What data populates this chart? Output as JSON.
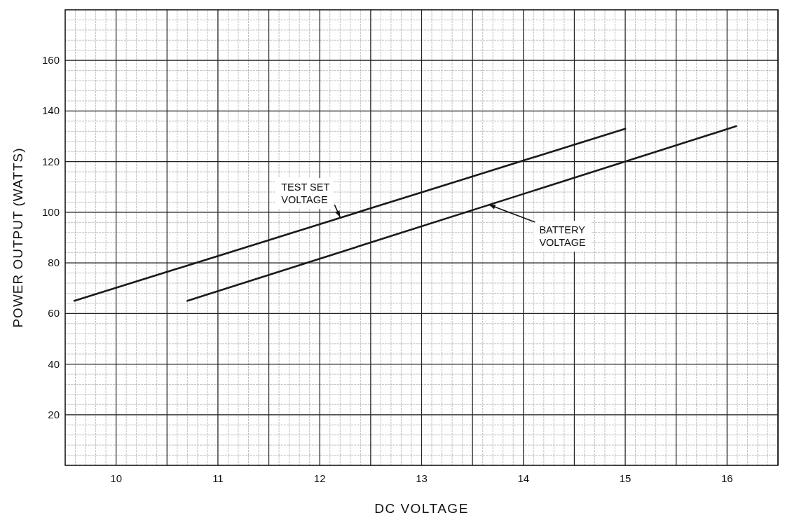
{
  "chart_data": {
    "type": "line",
    "xlabel": "DC VOLTAGE",
    "ylabel": "POWER OUTPUT (WATTS)",
    "xlim": [
      9.5,
      16.5
    ],
    "xticks": [
      10,
      {
        "value": 10.5,
        "label": null
      },
      11,
      {
        "value": 11.5,
        "label": null
      },
      12,
      {
        "value": 12.5,
        "label": null
      },
      13,
      {
        "value": 13.5,
        "label": null
      },
      14,
      {
        "value": 14.5,
        "label": null
      },
      15,
      {
        "value": 15.5,
        "label": null
      },
      16,
      {
        "value": 16.5,
        "label": null
      }
    ],
    "ylim": [
      0,
      180
    ],
    "yticks": [
      20,
      40,
      60,
      80,
      100,
      120,
      140,
      160
    ],
    "grid": true,
    "marker": "none",
    "line_style": "solid",
    "series": [
      {
        "color": "#1a1a1a",
        "x": [
          9.59,
          15.0
        ],
        "values": [
          65,
          133
        ]
      },
      {
        "color": "#1a1a1a",
        "x": [
          10.7,
          16.09
        ],
        "values": [
          65,
          134
        ]
      }
    ],
    "annotations": [
      {
        "text": "TEST SET\nVOLTAGE",
        "x": 12.2,
        "y": 98
      },
      {
        "text": "BATTERY\nVOLTAGE",
        "x": 13.66,
        "y": 103
      }
    ]
  }
}
